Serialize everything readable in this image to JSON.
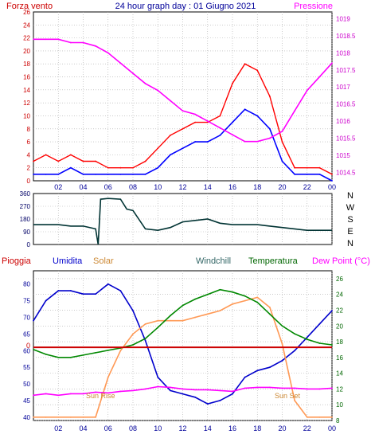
{
  "top": {
    "title": "24 hour graph day : 01 Giugno 2021",
    "left_label": "Forza vento",
    "right_label": "Pressione",
    "left_ticks": [
      "0",
      "2",
      "4",
      "6",
      "8",
      "10",
      "12",
      "14",
      "16",
      "18",
      "20",
      "22",
      "24",
      "26"
    ],
    "right_ticks": [
      "1014.5",
      "1015",
      "1015.5",
      "1016",
      "1016.5",
      "1017",
      "1017.5",
      "1018",
      "1018.5",
      "1019"
    ]
  },
  "middle": {
    "ticks": [
      "0",
      "90",
      "180",
      "270",
      "360"
    ],
    "direction_letters": [
      "N",
      "W",
      "S",
      "E",
      "N"
    ]
  },
  "bottom": {
    "labels": {
      "pioggia": "Pioggia",
      "umidita": "Umidita",
      "solar": "Solar",
      "windchill": "Windchill",
      "temperatura": "Temperatura",
      "dewpoint": "Dew Point (°C)"
    },
    "left_ticks": [
      "40",
      "45",
      "50",
      "55",
      "60",
      "65",
      "70",
      "75",
      "80"
    ],
    "right_ticks": [
      "8",
      "10",
      "12",
      "14",
      "16",
      "18",
      "20",
      "22",
      "24",
      "26"
    ],
    "rain_zero_label": "0",
    "sunrise_label": "Sun Rise",
    "sunset_label": "Sun Set"
  },
  "x_ticks": [
    "02",
    "04",
    "06",
    "08",
    "10",
    "12",
    "14",
    "16",
    "18",
    "20",
    "22",
    "00"
  ],
  "colors": {
    "wind_gust": "#ff0000",
    "wind_avg": "#0000ff",
    "pressure": "#ff00ff",
    "wind_dir": "#003333",
    "humidity": "#0000cc",
    "solar": "#ff9955",
    "temperature": "#008800",
    "dewpoint": "#ff00ff",
    "rain": "#cc0000",
    "grid": "#aaaaaa"
  },
  "chart_data": [
    {
      "type": "line",
      "panel": "top",
      "x": [
        0,
        1,
        2,
        3,
        4,
        5,
        6,
        7,
        8,
        9,
        10,
        11,
        12,
        13,
        14,
        15,
        16,
        17,
        18,
        19,
        20,
        21,
        22,
        23,
        24
      ],
      "series": [
        {
          "name": "Forza vento",
          "axis": "left",
          "values": [
            3,
            4,
            3,
            4,
            3,
            3,
            2,
            2,
            2,
            3,
            5,
            7,
            8,
            9,
            9,
            10,
            15,
            18,
            17,
            13,
            6,
            2,
            2,
            2,
            1
          ]
        },
        {
          "values": [
            1,
            1,
            1,
            2,
            1,
            1,
            1,
            1,
            1,
            1,
            2,
            4,
            5,
            6,
            6,
            7,
            9,
            11,
            10,
            8,
            3,
            1,
            1,
            1,
            0
          ]
        },
        {
          "name": "Pressione",
          "axis": "right",
          "values": [
            1018.4,
            1018.4,
            1018.4,
            1018.3,
            1018.3,
            1018.2,
            1018.0,
            1017.7,
            1017.4,
            1017.1,
            1016.9,
            1016.6,
            1016.3,
            1016.2,
            1016.0,
            1015.8,
            1015.6,
            1015.4,
            1015.4,
            1015.5,
            1015.7,
            1016.3,
            1016.9,
            1017.3,
            1017.7
          ]
        }
      ],
      "ylim_left": [
        0,
        26
      ],
      "ylim_right": [
        1014.25,
        1019.2
      ],
      "grid": true
    },
    {
      "type": "line",
      "panel": "middle",
      "x": [
        0,
        1,
        2,
        3,
        4,
        5,
        5.2,
        5.4,
        6,
        7,
        7.5,
        8,
        9,
        10,
        11,
        12,
        13,
        14,
        15,
        16,
        17,
        18,
        19,
        20,
        21,
        22,
        23,
        24
      ],
      "series": [
        {
          "values": [
            140,
            140,
            140,
            130,
            130,
            110,
            0,
            320,
            325,
            320,
            250,
            240,
            110,
            100,
            120,
            160,
            170,
            180,
            150,
            140,
            140,
            140,
            130,
            120,
            110,
            100,
            100,
            100
          ]
        }
      ],
      "ylim": [
        0,
        360
      ],
      "grid": true
    },
    {
      "type": "line",
      "panel": "bottom",
      "x": [
        0,
        1,
        2,
        3,
        4,
        5,
        6,
        7,
        8,
        9,
        10,
        11,
        12,
        13,
        14,
        15,
        16,
        17,
        18,
        19,
        20,
        21,
        22,
        23,
        24
      ],
      "series": [
        {
          "name": "Umidita",
          "axis": "left",
          "values": [
            69,
            75,
            78,
            78,
            77,
            77,
            80,
            78,
            72,
            63,
            52,
            48,
            47,
            46,
            44,
            45,
            47,
            52,
            54,
            55,
            57,
            60,
            64,
            68,
            72
          ]
        },
        {
          "name": "Solar",
          "axis": "left",
          "values": [
            40,
            40,
            40,
            40,
            40,
            40,
            52,
            60,
            65,
            68,
            69,
            69,
            69,
            70,
            71,
            72,
            74,
            75,
            76,
            73,
            62,
            45,
            40,
            40,
            40
          ]
        },
        {
          "name": "Temperatura",
          "axis": "right",
          "values": [
            17.0,
            16.4,
            16.0,
            16.0,
            16.3,
            16.6,
            16.9,
            17.2,
            17.6,
            18.4,
            19.8,
            21.3,
            22.6,
            23.4,
            24.0,
            24.6,
            24.3,
            23.8,
            23.0,
            21.5,
            20.0,
            19.0,
            18.3,
            17.8,
            17.6
          ]
        },
        {
          "name": "Dew Point (°C)",
          "axis": "right",
          "values": [
            11.2,
            11.4,
            11.2,
            11.4,
            11.4,
            11.6,
            11.5,
            11.7,
            11.8,
            12.0,
            12.3,
            12.2,
            12.0,
            11.9,
            11.9,
            11.8,
            11.7,
            12.1,
            12.2,
            12.2,
            12.1,
            12.1,
            12.0,
            12.0,
            12.1
          ]
        },
        {
          "name": "Pioggia",
          "axis": "left",
          "values": [
            61,
            61,
            61,
            61,
            61,
            61,
            61,
            61,
            61,
            61,
            61,
            61,
            61,
            61,
            61,
            61,
            61,
            61,
            61,
            61,
            61,
            61,
            61,
            61,
            61
          ]
        }
      ],
      "ylim_left": [
        39,
        84
      ],
      "ylim_right": [
        8,
        27
      ],
      "grid": true
    }
  ]
}
